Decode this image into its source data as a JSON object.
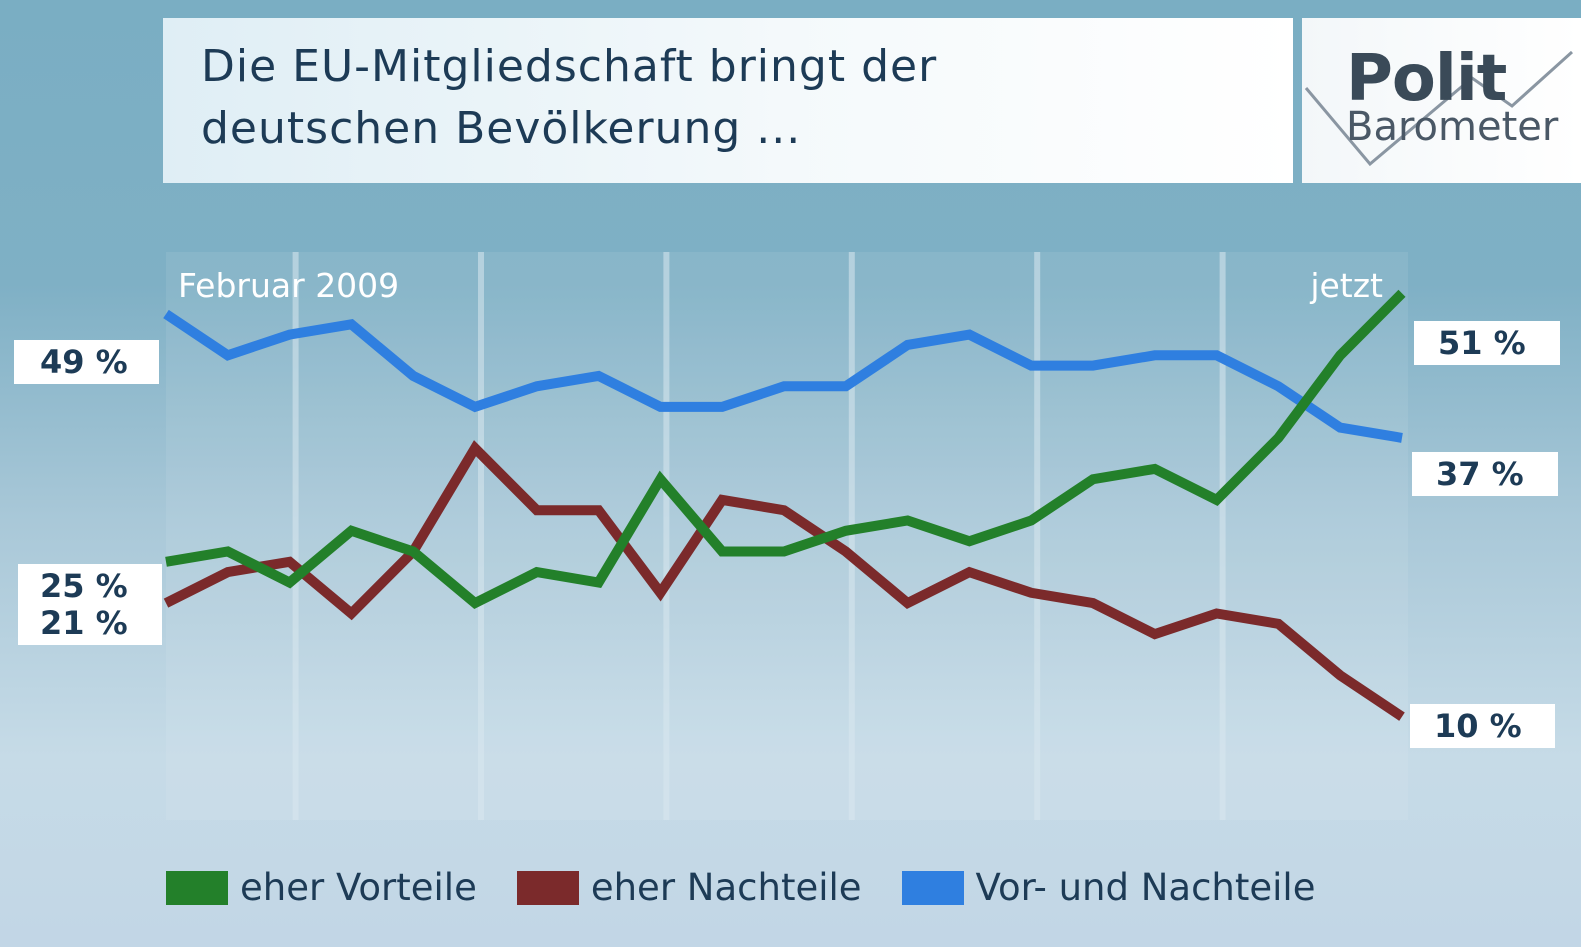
{
  "title": "Die EU-Mitgliedschaft bringt der\ndeutschen Bevölkerung ...",
  "logo": {
    "line1": "Polit",
    "line2": "Barometer"
  },
  "chart_data": {
    "type": "line",
    "title": "Die EU-Mitgliedschaft bringt der deutschen Bevölkerung ...",
    "x_start_label": "Februar 2009",
    "x_end_label": "jetzt",
    "x": [
      1,
      2,
      3,
      4,
      5,
      6,
      7,
      8,
      9,
      10,
      11,
      12,
      13,
      14,
      15,
      16,
      17,
      18,
      19,
      20,
      21
    ],
    "ylim": [
      0,
      55
    ],
    "grid": "vertical",
    "legend_position": "bottom",
    "series": [
      {
        "name": "eher Vorteile",
        "color": "#23802a",
        "values": [
          25,
          26,
          23,
          28,
          26,
          21,
          24,
          23,
          33,
          26,
          26,
          28,
          29,
          27,
          29,
          33,
          34,
          31,
          37,
          45,
          51
        ],
        "start_label": "25 %",
        "end_label": "51 %"
      },
      {
        "name": "eher Nachteile",
        "color": "#7b2a2b",
        "values": [
          21,
          24,
          25,
          20,
          26,
          36,
          30,
          30,
          22,
          31,
          30,
          26,
          21,
          24,
          22,
          21,
          18,
          20,
          19,
          14,
          10
        ],
        "start_label": "21 %",
        "end_label": "10 %"
      },
      {
        "name": "Vor- und Nachteile",
        "color": "#2f7fe0",
        "values": [
          49,
          45,
          47,
          48,
          43,
          40,
          42,
          43,
          40,
          40,
          42,
          42,
          46,
          47,
          44,
          44,
          45,
          45,
          42,
          38,
          37
        ],
        "start_label": "49 %",
        "end_label": "37 %"
      }
    ]
  }
}
